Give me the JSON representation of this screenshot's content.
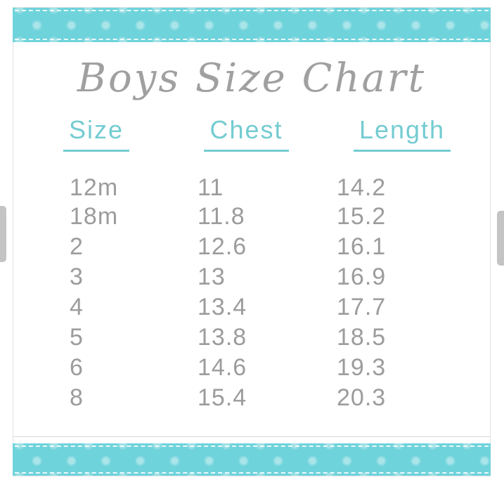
{
  "title": "Boys Size Chart",
  "chart_data": {
    "type": "table",
    "title": "Boys Size Chart",
    "columns": [
      "Size",
      "Chest",
      "Length"
    ],
    "rows": [
      [
        "12m",
        "11",
        "14.2"
      ],
      [
        "18m",
        "11.8",
        "15.2"
      ],
      [
        "2",
        "12.6",
        "16.1"
      ],
      [
        "3",
        "13",
        "16.9"
      ],
      [
        "4",
        "13.4",
        "17.7"
      ],
      [
        "5",
        "13.8",
        "18.5"
      ],
      [
        "6",
        "14.6",
        "19.3"
      ],
      [
        "8",
        "15.4",
        "20.3"
      ]
    ]
  },
  "colors": {
    "ribbon_teal": "#6fd3db",
    "ribbon_dot": "#9ce2e8",
    "header_teal": "#74ccd1",
    "text_gray": "#9c9c9c",
    "title_gray": "#a0a0a0",
    "handle_gray": "#c4c4c4",
    "border_gray": "#e2e2e2"
  }
}
